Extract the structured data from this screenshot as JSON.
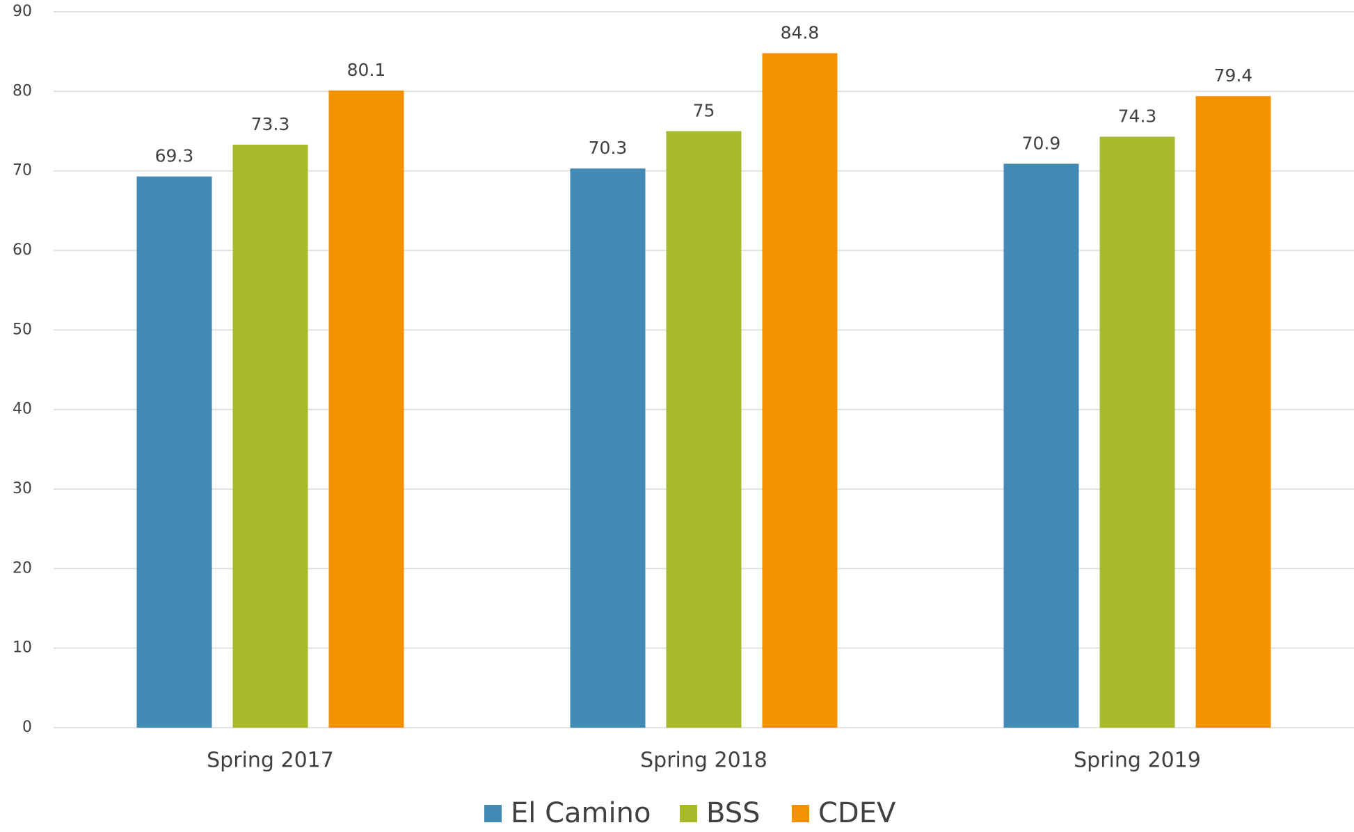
{
  "chart_data": {
    "type": "bar",
    "categories": [
      "Spring 2017",
      "Spring 2018",
      "Spring 2019"
    ],
    "series": [
      {
        "name": "El Camino",
        "color": "#428bb5",
        "values": [
          69.3,
          70.3,
          70.9
        ]
      },
      {
        "name": "BSS",
        "color": "#a7ba2a",
        "values": [
          73.3,
          75,
          74.3
        ]
      },
      {
        "name": "CDEV",
        "color": "#f49100",
        "values": [
          80.1,
          84.8,
          79.4
        ]
      }
    ],
    "ylim": [
      0,
      90
    ],
    "yticks": [
      0,
      10,
      20,
      30,
      40,
      50,
      60,
      70,
      80,
      90
    ],
    "grid": true,
    "legend": "bottom"
  }
}
